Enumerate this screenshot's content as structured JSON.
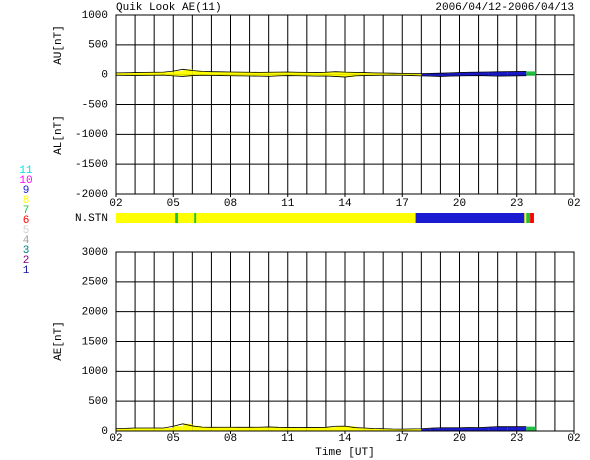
{
  "chart_data": [
    {
      "type": "line",
      "title": "Quik Look AE(11)",
      "date_range": "2006/04/12-2006/04/13",
      "y_label_top": "AU[nT]",
      "y_label_bottom": "AL[nT]",
      "xlim": [
        0,
        24
      ],
      "xticks": [
        {
          "value": 0,
          "label": "02"
        },
        {
          "value": 3,
          "label": "05"
        },
        {
          "value": 6,
          "label": "08"
        },
        {
          "value": 9,
          "label": "11"
        },
        {
          "value": 12,
          "label": "14"
        },
        {
          "value": 15,
          "label": "17"
        },
        {
          "value": 18,
          "label": "20"
        },
        {
          "value": 21,
          "label": "23"
        },
        {
          "value": 24,
          "label": "02"
        }
      ],
      "ylim": [
        -2000,
        1000
      ],
      "yticks": [
        -2000,
        -1500,
        -1000,
        -500,
        0,
        500,
        1000
      ],
      "grid": true,
      "x": [
        0,
        0.5,
        1,
        1.5,
        2,
        2.5,
        3,
        3.5,
        4,
        4.5,
        5,
        5.5,
        6,
        6.5,
        7,
        7.5,
        8,
        8.5,
        9,
        9.5,
        10,
        10.5,
        11,
        11.5,
        12,
        12.5,
        13,
        13.5,
        14,
        14.5,
        15,
        15.5,
        16,
        16.5,
        17,
        17.5,
        18,
        18.5,
        19,
        19.5,
        20,
        20.5,
        21,
        21.5
      ],
      "series": [
        {
          "name": "AU",
          "values": [
            30,
            32,
            35,
            38,
            40,
            42,
            60,
            90,
            70,
            55,
            50,
            48,
            45,
            42,
            40,
            38,
            40,
            42,
            45,
            40,
            38,
            35,
            40,
            50,
            42,
            38,
            35,
            30,
            28,
            25,
            22,
            20,
            18,
            22,
            25,
            30,
            35,
            40,
            42,
            45,
            48,
            50,
            52,
            55
          ]
        },
        {
          "name": "AL",
          "values": [
            -10,
            -12,
            -15,
            -12,
            -10,
            -8,
            -20,
            -30,
            -15,
            -10,
            -12,
            -15,
            -18,
            -20,
            -22,
            -25,
            -28,
            -20,
            -15,
            -18,
            -20,
            -25,
            -22,
            -30,
            -40,
            -20,
            -15,
            -12,
            -10,
            -8,
            -10,
            -15,
            -20,
            -25,
            -30,
            -25,
            -20,
            -18,
            -15,
            -20,
            -25,
            -22,
            -20,
            -18
          ]
        }
      ]
    },
    {
      "type": "stations",
      "label": "N.STN",
      "segments": [
        {
          "start": 0,
          "end": 15.7,
          "stations": 8
        },
        {
          "start": 3.1,
          "end": 3.25,
          "stations": 7
        },
        {
          "start": 4.1,
          "end": 4.2,
          "stations": 7
        },
        {
          "start": 15.7,
          "end": 21.4,
          "stations": 9
        },
        {
          "start": 21.4,
          "end": 21.5,
          "stations": 8
        },
        {
          "start": 21.5,
          "end": 21.7,
          "stations": 7
        },
        {
          "start": 21.7,
          "end": 21.9,
          "stations": 6
        }
      ],
      "legend": [
        {
          "label": "11",
          "color": "#00e0e0"
        },
        {
          "label": "10",
          "color": "#ff00ff"
        },
        {
          "label": "9",
          "color": "#1a1ad0"
        },
        {
          "label": "8",
          "color": "#ffff00"
        },
        {
          "label": "7",
          "color": "#20c040"
        },
        {
          "label": "6",
          "color": "#ff0000"
        },
        {
          "label": "5",
          "color": "#d0d0d0"
        },
        {
          "label": "4",
          "color": "#a0a0a0"
        },
        {
          "label": "3",
          "color": "#008080"
        },
        {
          "label": "2",
          "color": "#800080"
        },
        {
          "label": "1",
          "color": "#1010a0"
        }
      ]
    },
    {
      "type": "line",
      "y_label": "AE[nT]",
      "x_label": "Time [UT]",
      "xlim": [
        0,
        24
      ],
      "xticks": [
        {
          "value": 0,
          "label": "02"
        },
        {
          "value": 3,
          "label": "05"
        },
        {
          "value": 6,
          "label": "08"
        },
        {
          "value": 9,
          "label": "11"
        },
        {
          "value": 12,
          "label": "14"
        },
        {
          "value": 15,
          "label": "17"
        },
        {
          "value": 18,
          "label": "20"
        },
        {
          "value": 21,
          "label": "23"
        },
        {
          "value": 24,
          "label": "02"
        }
      ],
      "ylim": [
        0,
        3000
      ],
      "yticks": [
        0,
        500,
        1000,
        1500,
        2000,
        2500,
        3000
      ],
      "grid": true,
      "x": [
        0,
        0.5,
        1,
        1.5,
        2,
        2.5,
        3,
        3.5,
        4,
        4.5,
        5,
        5.5,
        6,
        6.5,
        7,
        7.5,
        8,
        8.5,
        9,
        9.5,
        10,
        10.5,
        11,
        11.5,
        12,
        12.5,
        13,
        13.5,
        14,
        14.5,
        15,
        15.5,
        16,
        16.5,
        17,
        17.5,
        18,
        18.5,
        19,
        19.5,
        20,
        20.5,
        21,
        21.5
      ],
      "series": [
        {
          "name": "AE",
          "values": [
            40,
            44,
            50,
            50,
            50,
            50,
            80,
            120,
            85,
            65,
            62,
            63,
            63,
            62,
            62,
            63,
            68,
            62,
            60,
            58,
            58,
            60,
            62,
            80,
            82,
            58,
            50,
            42,
            38,
            33,
            32,
            35,
            38,
            47,
            55,
            55,
            55,
            58,
            57,
            65,
            73,
            72,
            72,
            73
          ]
        }
      ]
    }
  ]
}
